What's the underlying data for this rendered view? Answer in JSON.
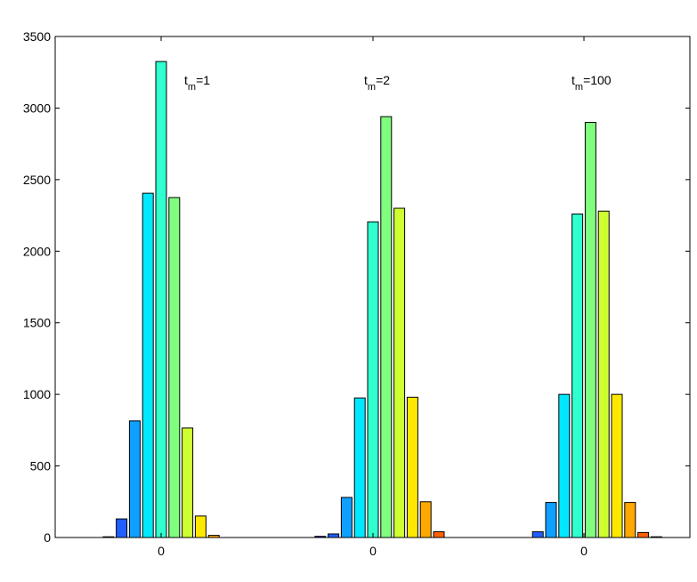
{
  "chart_data": {
    "type": "bar",
    "title": "",
    "xlabel": "",
    "ylabel": "",
    "ylim": [
      0,
      3500
    ],
    "yticks": [
      0,
      500,
      1000,
      1500,
      2000,
      2500,
      3000,
      3500
    ],
    "grid": false,
    "legend": "none",
    "groups": [
      {
        "tick_label": "0",
        "annotation": {
          "base": "t",
          "subscript": "m",
          "suffix": "=1"
        },
        "values": [
          0,
          5,
          130,
          815,
          2405,
          3325,
          2375,
          765,
          150,
          15,
          0
        ]
      },
      {
        "tick_label": "0",
        "annotation": {
          "base": "t",
          "subscript": "m",
          "suffix": "=2"
        },
        "values": [
          0,
          8,
          25,
          280,
          975,
          2205,
          2940,
          2300,
          980,
          250,
          40
        ]
      },
      {
        "tick_label": "0",
        "annotation": {
          "base": "t",
          "subscript": "m",
          "suffix": "=100"
        },
        "values": [
          0,
          0,
          40,
          245,
          1000,
          2260,
          2900,
          2280,
          1000,
          245,
          35,
          5
        ]
      }
    ],
    "colors": [
      "#00008f",
      "#0000ff",
      "#1f5fff",
      "#0fa0ff",
      "#00e8ff",
      "#30ffcf",
      "#80ff7f",
      "#cfff30",
      "#ffe800",
      "#ffa800",
      "#ff6000",
      "#e81000"
    ]
  }
}
